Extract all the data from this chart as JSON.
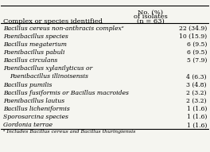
{
  "title_line1": "No. (%)",
  "title_line2": "of isolates",
  "title_line3": "(n = 63)",
  "col_header": "Complex or species identified",
  "rows": [
    {
      "text": "Bacillus cereus non-anthracis complexᵃ",
      "italic": true,
      "value": "22 (34.9)",
      "indent": 0
    },
    {
      "text": "Paenibacillus species",
      "italic": true,
      "value": "10 (15.9)",
      "indent": 0
    },
    {
      "text": "Bacillus megaterium",
      "italic": true,
      "value": "6 (9.5)",
      "indent": 0
    },
    {
      "text": "Paenibacillus pabuli",
      "italic": true,
      "value": "6 (9.5)",
      "indent": 0
    },
    {
      "text": "Bacillus circulans",
      "italic": true,
      "value": "5 (7.9)",
      "indent": 0
    },
    {
      "text": "Paenibacillus xylanilyticus or",
      "italic": true,
      "value": "",
      "indent": 0
    },
    {
      "text": "Paenibacillus illinoisensis",
      "italic": true,
      "value": "4 (6.3)",
      "indent": 1
    },
    {
      "text": "Bacillus pumilis",
      "italic": true,
      "value": "3 (4.8)",
      "indent": 0
    },
    {
      "text": "Bacillus fusiformis or Bacillus macroides",
      "italic": true,
      "value": "2 (3.2)",
      "indent": 0
    },
    {
      "text": "Paenibacillus lautus",
      "italic": true,
      "value": "2 (3.2)",
      "indent": 0
    },
    {
      "text": "Bacillus licheniformis",
      "italic": true,
      "value": "1 (1.6)",
      "indent": 0
    },
    {
      "text": "Sporosarcina species",
      "italic": true,
      "value": "1 (1.6)",
      "indent": 0
    },
    {
      "text": "Gordonia terrae",
      "italic": true,
      "value": "1 (1.6)",
      "indent": 0
    }
  ],
  "footnote": "ᵃ Includes Bacillus cereus and Bacillus thuringiensis",
  "bg_color": "#f5f5f0",
  "text_color": "#000000",
  "line_color": "#000000",
  "header_fontsize": 6.0,
  "row_fontsize": 5.5,
  "footnote_fontsize": 4.5
}
